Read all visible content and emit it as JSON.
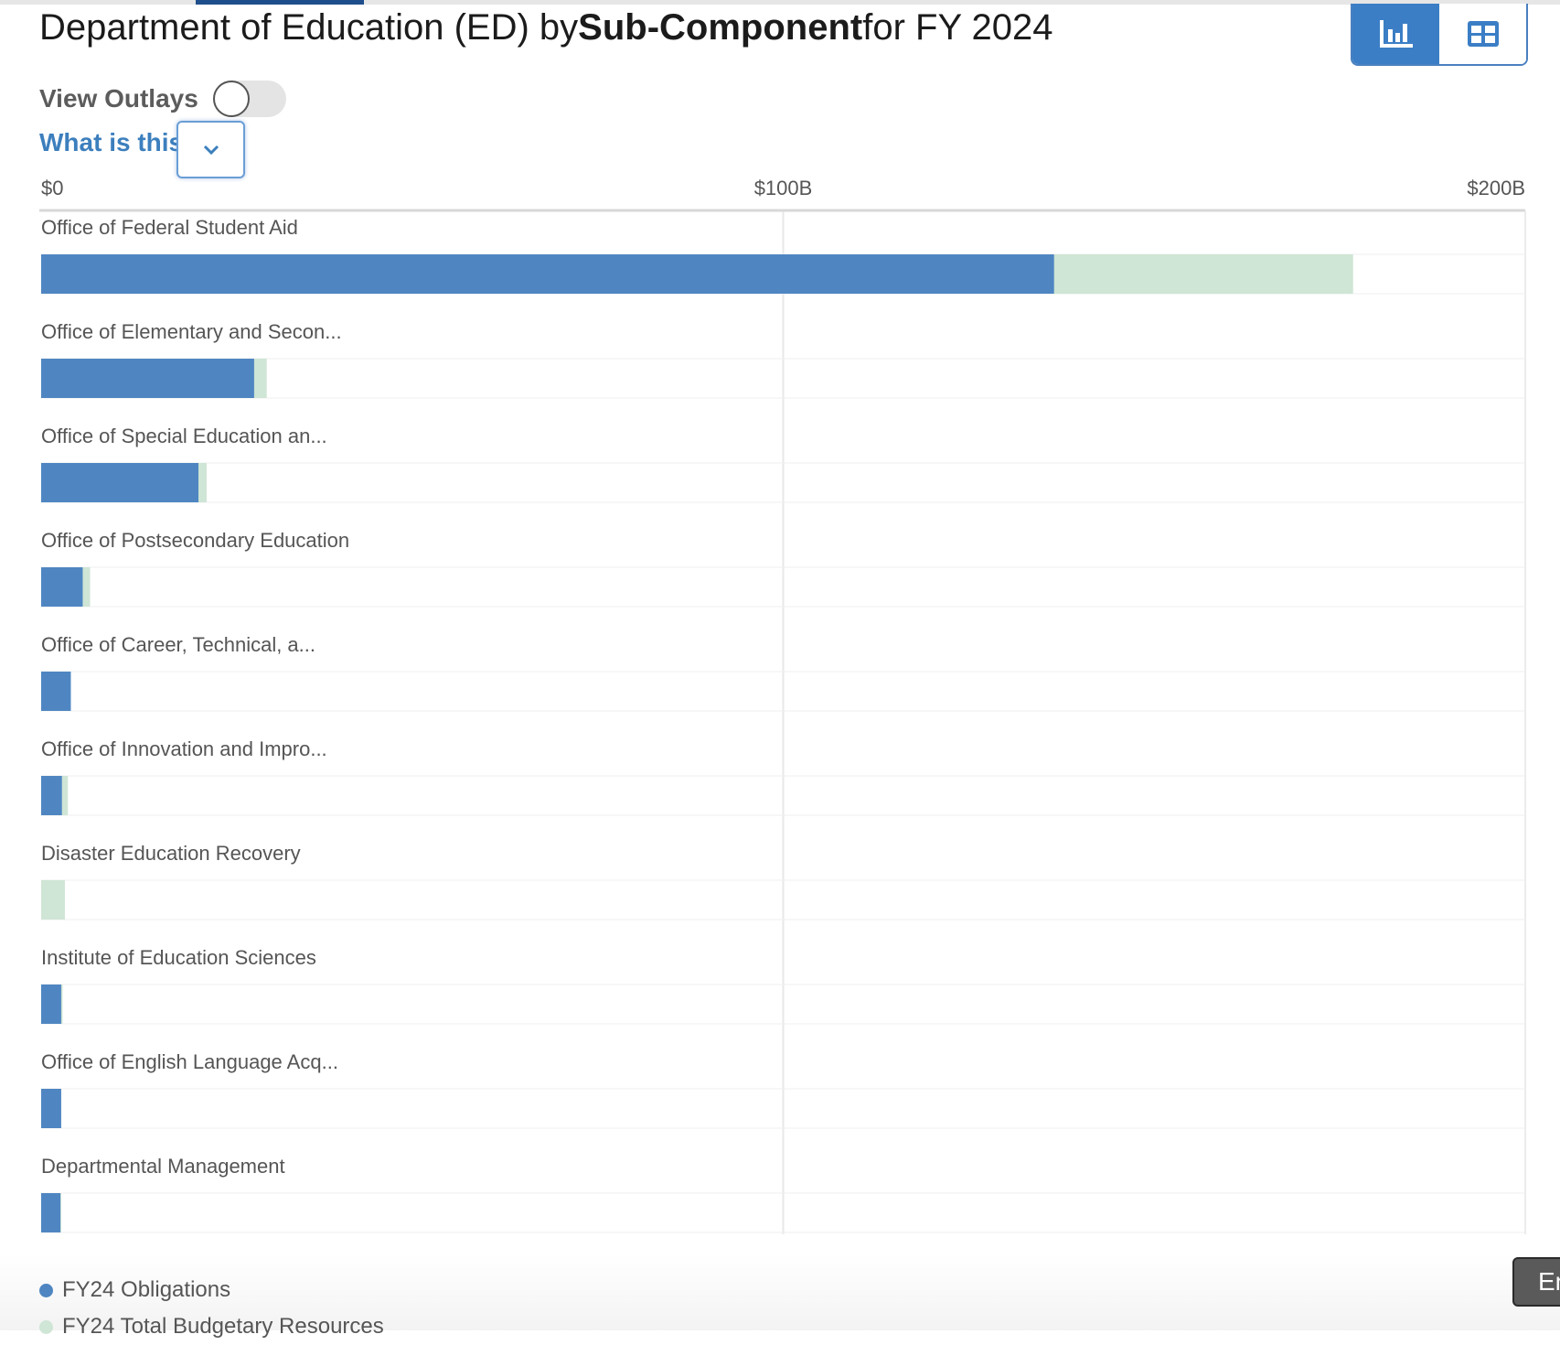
{
  "header": {
    "title_prefix": "Department of Education (ED) by",
    "title_bold": "Sub-Component",
    "title_suffix": "for FY 2024"
  },
  "toggle": {
    "label": "View Outlays",
    "on": false
  },
  "help": {
    "label": "What is this?"
  },
  "view_buttons": {
    "chart_icon": "bar-chart-icon",
    "table_icon": "table-grid-icon",
    "active": "chart"
  },
  "colors": {
    "obligations": "#4f86c2",
    "resources": "#cfe5d5",
    "accent": "#3b7ec5"
  },
  "legend": [
    {
      "label": "FY24 Obligations",
      "color": "#4f86c2"
    },
    {
      "label": "FY24 Total Budgetary Resources",
      "color": "#cfe5d5"
    }
  ],
  "corner_button": {
    "label": "En"
  },
  "chart_data": {
    "type": "bar",
    "orientation": "horizontal",
    "stacked_overlay": true,
    "xlim": [
      0,
      200
    ],
    "x_unit": "B",
    "x_ticks": [
      "$0",
      "$100B",
      "$200B"
    ],
    "x_tick_values": [
      0,
      100,
      200
    ],
    "categories": [
      "Office of Federal Student Aid",
      "Office of Elementary and Secon...",
      "Office of Special Education an...",
      "Office of Postsecondary Education",
      "Office of Career, Technical, a...",
      "Office of Innovation and Impro...",
      "Disaster Education Recovery",
      "Institute of Education Sciences",
      "Office of English Language Acq...",
      "Departmental Management"
    ],
    "series": [
      {
        "name": "FY24 Obligations",
        "values": [
          136.5,
          28.7,
          21.2,
          5.6,
          4.0,
          2.8,
          0.0,
          2.7,
          2.7,
          2.6
        ]
      },
      {
        "name": "FY24 Total Budgetary Resources",
        "values": [
          176.8,
          30.4,
          22.3,
          6.6,
          4.0,
          3.6,
          3.2,
          2.9,
          2.7,
          2.7
        ]
      }
    ],
    "grid": true,
    "legend_position": "bottom-left"
  }
}
